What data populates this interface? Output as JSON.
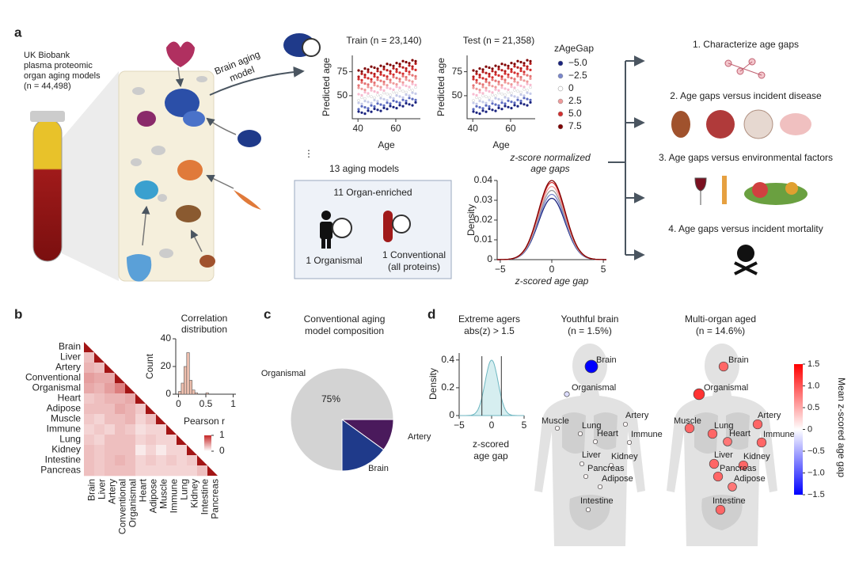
{
  "panel_a": {
    "label": "a",
    "source": [
      "UK Biobank",
      "plasma proteomic",
      "organ aging models",
      "(n = 44,498)"
    ],
    "model_label": [
      "Brain aging",
      "model"
    ],
    "train_title": "Train (n = 23,140)",
    "test_title": "Test (n = 21,358)",
    "scatter_y_label": "Predicted age",
    "scatter_x_label": "Age",
    "scatter_xlim": [
      37,
      73
    ],
    "scatter_ylim": [
      26,
      92
    ],
    "scatter_xticks": [
      40,
      60
    ],
    "scatter_yticks": [
      50,
      75
    ],
    "legend_title": "zAgeGap",
    "legend": [
      {
        "label": "−5.0",
        "color": "#1a237e"
      },
      {
        "label": "−2.5",
        "color": "#7986cb"
      },
      {
        "label": "0",
        "color": "#ffffff"
      },
      {
        "label": "2.5",
        "color": "#ef9a9a"
      },
      {
        "label": "5.0",
        "color": "#d32f2f"
      },
      {
        "label": "7.5",
        "color": "#7f0000"
      }
    ],
    "ellipsis": "⋮",
    "models_title": "13 aging models",
    "organ_enriched": "11 Organ-enriched",
    "organismal": "1 Organismal",
    "conventional": [
      "1 Conventional",
      "(all proteins)"
    ],
    "density_title": [
      "z-score normalized",
      "age gaps"
    ],
    "density_y_label": "Density",
    "density_x_label": "z-scored age gap",
    "density_xlim": [
      -5.3,
      5.3
    ],
    "density_ylim": [
      0,
      0.04
    ],
    "density_xticks": [
      {
        "value": -5,
        "label": "−5"
      },
      0,
      5
    ],
    "density_yticks": [
      0,
      0.01,
      0.02,
      0.03,
      0.04
    ],
    "outcomes": [
      "1. Characterize age gaps",
      "2. Age gaps versus incident disease",
      "3. Age gaps versus environmental factors",
      "4. Age gaps versus incident mortality"
    ]
  },
  "panel_b": {
    "label": "b",
    "organs": [
      "Brain",
      "Liver",
      "Artery",
      "Conventional",
      "Organismal",
      "Heart",
      "Adipose",
      "Muscle",
      "Immune",
      "Lung",
      "Kidney",
      "Intestine",
      "Pancreas"
    ],
    "matrix": [
      [
        1
      ],
      [
        0.3,
        1
      ],
      [
        0.35,
        0.3,
        1
      ],
      [
        0.45,
        0.4,
        0.4,
        1
      ],
      [
        0.4,
        0.35,
        0.45,
        0.6,
        1
      ],
      [
        0.25,
        0.3,
        0.35,
        0.35,
        0.4,
        1
      ],
      [
        0.3,
        0.3,
        0.3,
        0.4,
        0.35,
        0.25,
        1
      ],
      [
        0.25,
        0.2,
        0.3,
        0.3,
        0.35,
        0.2,
        0.3,
        1
      ],
      [
        0.2,
        0.25,
        0.2,
        0.3,
        0.25,
        0.15,
        0.2,
        0.2,
        1
      ],
      [
        0.25,
        0.2,
        0.3,
        0.3,
        0.3,
        0.2,
        0.25,
        0.2,
        0.2,
        1
      ],
      [
        0.3,
        0.25,
        0.3,
        0.3,
        0.3,
        0.1,
        0.2,
        0.1,
        0.2,
        0.2,
        1
      ],
      [
        0.3,
        0.25,
        0.3,
        0.35,
        0.3,
        0.2,
        0.25,
        0.2,
        0.25,
        0.2,
        0.25,
        1
      ],
      [
        0.3,
        0.25,
        0.3,
        0.3,
        0.3,
        0.2,
        0.2,
        0.2,
        0.2,
        0.2,
        0.2,
        0.3,
        1
      ]
    ],
    "hist_title": [
      "Correlation",
      "distribution"
    ],
    "hist_y_label": "Count",
    "hist_x_label": "Pearson r",
    "hist_bins": [
      0,
      0.05,
      0.1,
      0.15,
      0.2,
      0.25,
      0.3,
      0.35,
      0.4,
      0.45,
      0.5,
      0.55
    ],
    "hist_counts": [
      2,
      8,
      20,
      30,
      10,
      3,
      1,
      0,
      0,
      0,
      1
    ],
    "hist_xlim": [
      -0.05,
      1.05
    ],
    "hist_ylim": [
      0,
      40
    ],
    "hist_xticks": [
      0,
      0.5,
      1
    ],
    "hist_yticks": [
      0,
      20,
      40
    ],
    "colorbar_lim": [
      0,
      1
    ],
    "colorbar_ticks": [
      0,
      1
    ]
  },
  "panel_c": {
    "label": "c",
    "title": [
      "Conventional aging",
      "model composition"
    ],
    "slices": [
      {
        "name": "Artery",
        "value": 10,
        "color": "#4a1a5c"
      },
      {
        "name": "Brain",
        "value": 15,
        "color": "#1f3a8a"
      },
      {
        "name": "Organismal",
        "value": 75,
        "value_label": "75%",
        "color": "#d3d3d3"
      }
    ]
  },
  "panel_d": {
    "label": "d",
    "extreme_title": [
      "Extreme agers",
      "abs(z) > 1.5"
    ],
    "threshold": 1.5,
    "density_y_label": "Density",
    "density_x_label": [
      "z-scored",
      "age gap"
    ],
    "density_xlim": [
      -5,
      5
    ],
    "density_ylim": [
      0,
      0.45
    ],
    "density_xticks": [
      {
        "value": -5,
        "label": "−5"
      },
      0,
      5
    ],
    "density_yticks": [
      0,
      0.2,
      0.4
    ],
    "youthful_title": [
      "Youthful brain",
      "(n = 1.5%)"
    ],
    "aged_title": [
      "Multi-organ aged",
      "(n = 14.6%)"
    ],
    "youthful": [
      {
        "name": "Brain",
        "value": -1.5
      },
      {
        "name": "Organismal",
        "value": -0.2
      },
      {
        "name": "Muscle",
        "value": 0.05
      },
      {
        "name": "Lung",
        "value": 0.05
      },
      {
        "name": "Heart",
        "value": 0.05
      },
      {
        "name": "Artery",
        "value": 0.05
      },
      {
        "name": "Immune",
        "value": 0.05
      },
      {
        "name": "Liver",
        "value": 0.05
      },
      {
        "name": "Kidney",
        "value": 0.05
      },
      {
        "name": "Pancreas",
        "value": 0.05
      },
      {
        "name": "Adipose",
        "value": 0.05
      },
      {
        "name": "Intestine",
        "value": 0.05
      }
    ],
    "aged": [
      {
        "name": "Brain",
        "value": 0.9
      },
      {
        "name": "Organismal",
        "value": 1.2
      },
      {
        "name": "Muscle",
        "value": 0.9
      },
      {
        "name": "Lung",
        "value": 0.9
      },
      {
        "name": "Heart",
        "value": 0.8
      },
      {
        "name": "Artery",
        "value": 0.9
      },
      {
        "name": "Immune",
        "value": 0.9
      },
      {
        "name": "Liver",
        "value": 0.9
      },
      {
        "name": "Kidney",
        "value": 0.9
      },
      {
        "name": "Pancreas",
        "value": 0.9
      },
      {
        "name": "Adipose",
        "value": 0.8
      },
      {
        "name": "Intestine",
        "value": 0.9
      }
    ],
    "colorbar_title": "Mean z-scored age gap",
    "colorbar_lim": [
      -1.5,
      1.5
    ],
    "colorbar_ticks": [
      {
        "value": 1.5,
        "label": "1.5"
      },
      {
        "value": 1,
        "label": "1.0"
      },
      {
        "value": 0.5,
        "label": "0.5"
      },
      0,
      {
        "value": -0.5,
        "label": "−0.5"
      },
      {
        "value": -1,
        "label": "−1.0"
      },
      {
        "value": -1.5,
        "label": "−1.5"
      }
    ]
  }
}
